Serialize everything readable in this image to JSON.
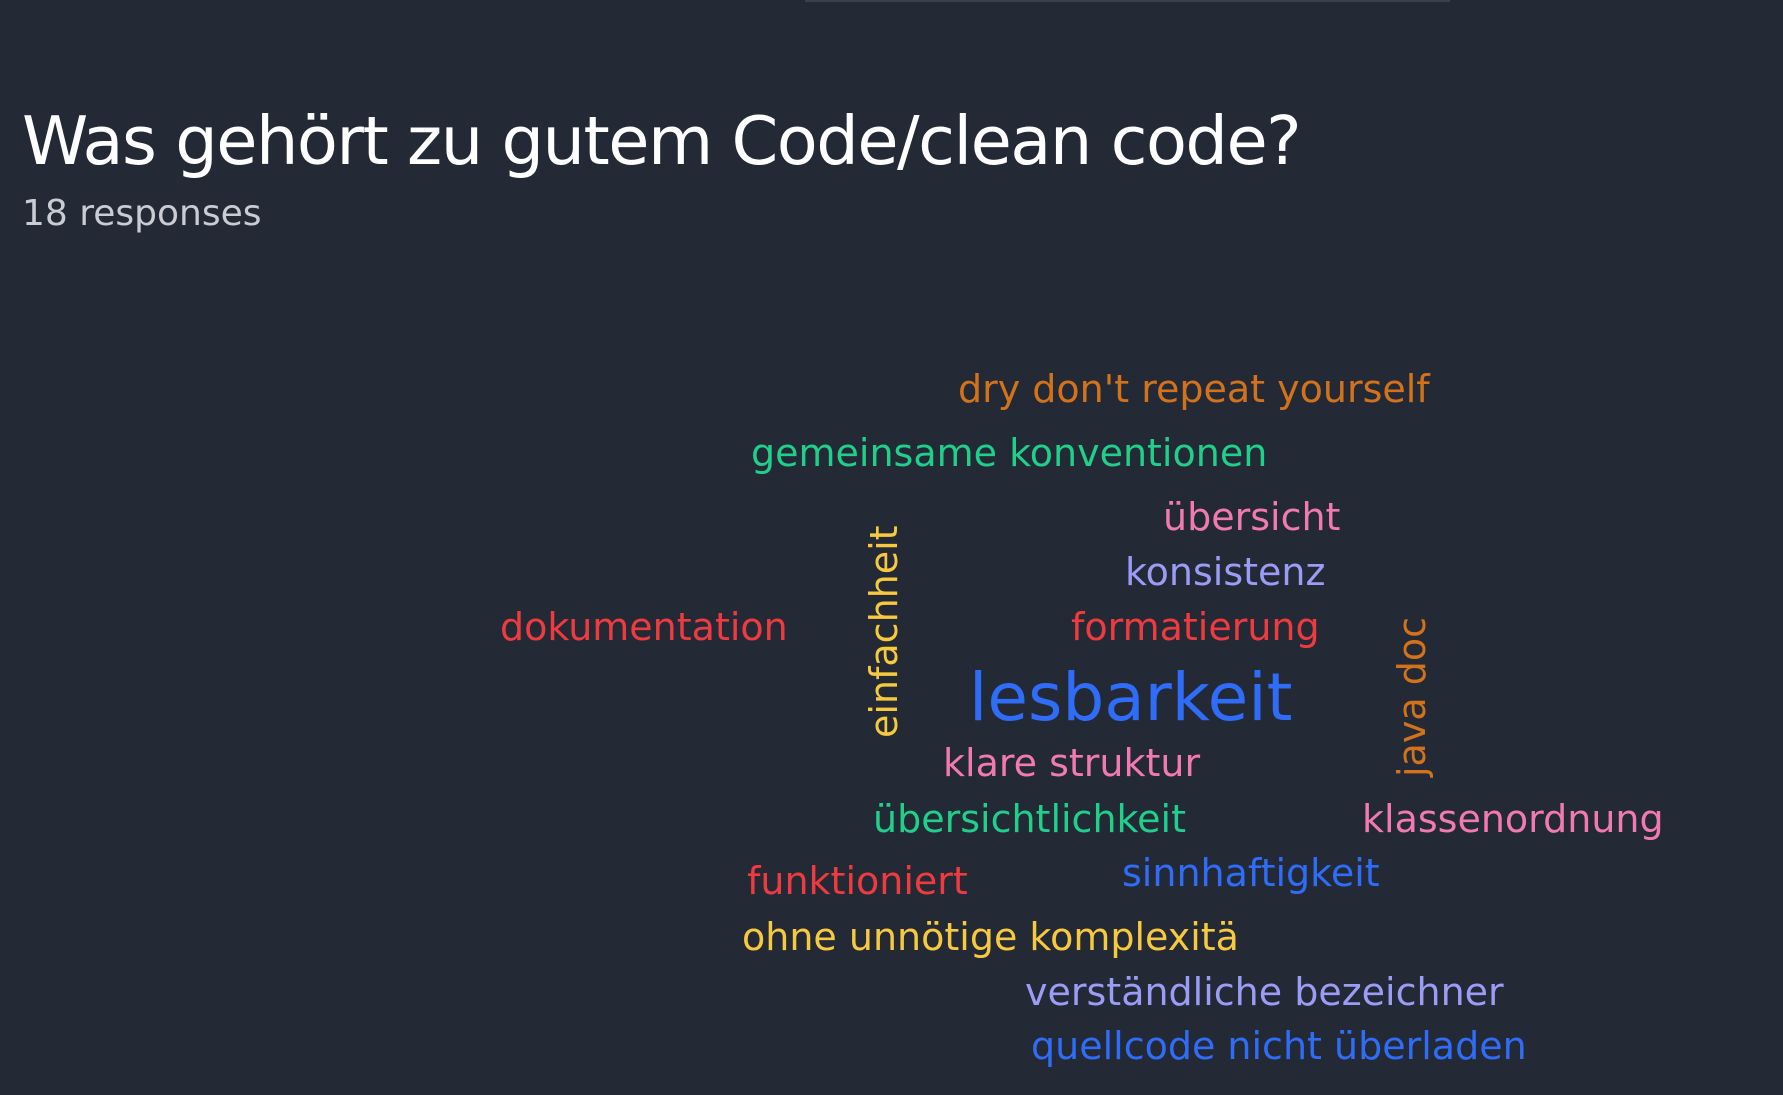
{
  "question": {
    "title": "Was gehört zu gutem Code/clean code?",
    "responses": "18 responses"
  },
  "colors": {
    "background": "#242936",
    "orange": "#d2731c",
    "green": "#1fcf8a",
    "pink": "#f07ab1",
    "lavender": "#9a9cf6",
    "red": "#ee3b3f",
    "yellow": "#f7c93e",
    "blue": "#2f6cf7"
  },
  "word_cloud": [
    {
      "text": "dry don't repeat yourself",
      "color": "#d2731c",
      "rank": 2,
      "orientation": "horizontal"
    },
    {
      "text": "gemeinsame konventionen",
      "color": "#1fcf8a",
      "rank": 2,
      "orientation": "horizontal"
    },
    {
      "text": "übersicht",
      "color": "#f07ab1",
      "rank": 2,
      "orientation": "horizontal"
    },
    {
      "text": "konsistenz",
      "color": "#9a9cf6",
      "rank": 2,
      "orientation": "horizontal"
    },
    {
      "text": "dokumentation",
      "color": "#ee3b3f",
      "rank": 2,
      "orientation": "horizontal"
    },
    {
      "text": "einfachheit",
      "color": "#f7c93e",
      "rank": 2,
      "orientation": "vertical"
    },
    {
      "text": "formatierung",
      "color": "#ee3b3f",
      "rank": 2,
      "orientation": "horizontal"
    },
    {
      "text": "java doc",
      "color": "#d2731c",
      "rank": 2,
      "orientation": "vertical"
    },
    {
      "text": "lesbarkeit",
      "color": "#2f6cf7",
      "rank": 1,
      "orientation": "horizontal"
    },
    {
      "text": "klare struktur",
      "color": "#f07ab1",
      "rank": 2,
      "orientation": "horizontal"
    },
    {
      "text": "übersichtlichkeit",
      "color": "#1fcf8a",
      "rank": 2,
      "orientation": "horizontal"
    },
    {
      "text": "klassenordnung",
      "color": "#f07ab1",
      "rank": 2,
      "orientation": "horizontal"
    },
    {
      "text": "funktioniert",
      "color": "#ee3b3f",
      "rank": 2,
      "orientation": "horizontal"
    },
    {
      "text": "sinnhaftigkeit",
      "color": "#2f6cf7",
      "rank": 2,
      "orientation": "horizontal"
    },
    {
      "text": "ohne unnötige komplexitä",
      "color": "#f7c93e",
      "rank": 2,
      "orientation": "horizontal"
    },
    {
      "text": "verständliche bezeichner",
      "color": "#9a9cf6",
      "rank": 2,
      "orientation": "horizontal"
    },
    {
      "text": "quellcode nicht überladen",
      "color": "#2f6cf7",
      "rank": 2,
      "orientation": "horizontal"
    }
  ]
}
